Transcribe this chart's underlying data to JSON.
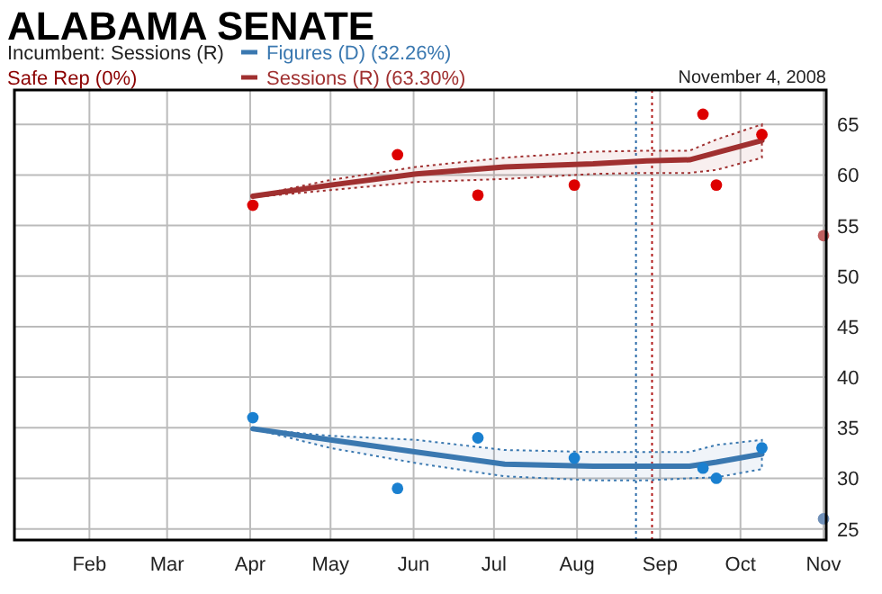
{
  "chart_data": {
    "type": "line",
    "title": "ALABAMA SENATE",
    "subtitle": "Incumbent: Sessions (R)",
    "annotations": [
      "Safe Rep (0%)",
      "November 4, 2008"
    ],
    "xlim": [
      "2008-01-04",
      "2008-11-02"
    ],
    "xticks": [
      {
        "value": "2008-02-01",
        "label": "Feb"
      },
      {
        "value": "2008-03-01",
        "label": "Mar"
      },
      {
        "value": "2008-04-01",
        "label": "Apr"
      },
      {
        "value": "2008-05-01",
        "label": "May"
      },
      {
        "value": "2008-06-01",
        "label": "Jun"
      },
      {
        "value": "2008-07-01",
        "label": "Jul"
      },
      {
        "value": "2008-08-01",
        "label": "Aug"
      },
      {
        "value": "2008-09-01",
        "label": "Sep"
      },
      {
        "value": "2008-10-01",
        "label": "Oct"
      },
      {
        "value": "2008-11-01",
        "label": "Nov"
      }
    ],
    "ylim": [
      23.9,
      68.4
    ],
    "yticks": [
      25,
      30,
      35,
      40,
      45,
      50,
      55,
      60,
      65
    ],
    "grid": true,
    "legend": "top",
    "ref_lines": [
      {
        "axis": "x",
        "value": "2008-08-23",
        "color": "#2a6aa8",
        "line_style": "dotted"
      },
      {
        "axis": "x",
        "value": "2008-08-29",
        "color": "#b01818",
        "line_style": "dotted"
      }
    ],
    "series": [
      {
        "name": "Figures (D) (32.26%)",
        "type": "line",
        "color": "#3a78b0",
        "x": [
          "2008-04-02",
          "2008-05-01",
          "2008-06-02",
          "2008-07-05",
          "2008-08-07",
          "2008-08-27",
          "2008-09-12",
          "2008-09-22",
          "2008-10-09"
        ],
        "values": [
          34.9,
          33.8,
          32.6,
          31.4,
          31.2,
          31.2,
          31.2,
          31.6,
          32.4
        ],
        "lower": [
          34.9,
          33.0,
          31.5,
          30.2,
          29.8,
          29.8,
          30.0,
          30.1,
          30.9
        ],
        "upper": [
          34.9,
          34.2,
          33.8,
          32.8,
          32.6,
          32.6,
          32.6,
          33.3,
          33.8
        ]
      },
      {
        "name": "Sessions (R) (63.30%)",
        "type": "line",
        "color": "#a03030",
        "x": [
          "2008-04-02",
          "2008-05-01",
          "2008-06-02",
          "2008-07-05",
          "2008-08-07",
          "2008-08-27",
          "2008-09-12",
          "2008-09-22",
          "2008-10-09"
        ],
        "values": [
          57.9,
          59.0,
          60.1,
          60.8,
          61.1,
          61.4,
          61.5,
          62.2,
          63.4
        ],
        "lower": [
          57.8,
          58.5,
          59.3,
          59.6,
          60.1,
          60.2,
          60.2,
          60.5,
          61.7
        ],
        "upper": [
          57.9,
          59.5,
          60.8,
          61.7,
          62.3,
          62.4,
          62.4,
          63.5,
          65.0
        ]
      },
      {
        "type": "scatter",
        "marker": "circle",
        "color": "#1a80d0",
        "x": [
          "2008-04-02",
          "2008-05-26",
          "2008-06-25",
          "2008-07-31",
          "2008-09-17",
          "2008-09-22",
          "2008-10-09"
        ],
        "values": [
          36,
          29,
          34,
          32,
          31,
          30,
          33
        ]
      },
      {
        "type": "scatter",
        "marker": "circle",
        "color": "#dd0000",
        "x": [
          "2008-04-02",
          "2008-05-26",
          "2008-06-25",
          "2008-07-31",
          "2008-09-17",
          "2008-09-22",
          "2008-10-09"
        ],
        "values": [
          57,
          62,
          58,
          59,
          66,
          59,
          64
        ]
      },
      {
        "type": "scatter",
        "marker": "circle",
        "color": "#7090b8",
        "x": [
          "2008-11-01"
        ],
        "values": [
          26
        ]
      },
      {
        "type": "scatter",
        "marker": "circle",
        "color": "#c06060",
        "x": [
          "2008-11-01"
        ],
        "values": [
          54
        ]
      }
    ]
  }
}
